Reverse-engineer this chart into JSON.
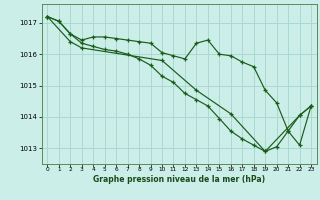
{
  "title": "Graphe pression niveau de la mer (hPa)",
  "bg_color": "#cceee8",
  "grid_color": "#aad8d0",
  "line_color": "#1a5c1a",
  "xlim": [
    -0.5,
    23.5
  ],
  "ylim": [
    1012.5,
    1017.6
  ],
  "yticks": [
    1013,
    1014,
    1015,
    1016,
    1017
  ],
  "xticks": [
    0,
    1,
    2,
    3,
    4,
    5,
    6,
    7,
    8,
    9,
    10,
    11,
    12,
    13,
    14,
    15,
    16,
    17,
    18,
    19,
    20,
    21,
    22,
    23
  ],
  "series": [
    {
      "x": [
        0,
        1,
        2,
        3,
        4,
        5,
        6,
        7,
        8,
        9,
        10,
        11,
        12,
        13,
        14,
        15,
        16,
        17,
        18,
        19,
        20,
        21,
        22,
        23
      ],
      "y": [
        1017.2,
        1017.05,
        1016.65,
        1016.45,
        1016.55,
        1016.55,
        1016.5,
        1016.45,
        1016.4,
        1016.35,
        1016.05,
        1015.95,
        1015.85,
        1016.35,
        1016.45,
        1016.0,
        1015.95,
        1015.75,
        1015.6,
        1014.85,
        1014.45,
        1013.55,
        1013.1,
        1014.35
      ]
    },
    {
      "x": [
        0,
        1,
        2,
        3,
        4,
        5,
        6,
        7,
        8,
        9,
        10,
        11,
        12,
        13,
        14,
        15,
        16,
        17,
        18,
        19,
        20,
        21,
        22,
        23
      ],
      "y": [
        1017.2,
        1017.05,
        1016.65,
        1016.35,
        1016.25,
        1016.15,
        1016.1,
        1016.0,
        1015.85,
        1015.65,
        1015.3,
        1015.1,
        1014.75,
        1014.55,
        1014.35,
        1013.95,
        1013.55,
        1013.3,
        1013.1,
        1012.9,
        1013.05,
        1013.55,
        1014.05,
        1014.35
      ]
    },
    {
      "x": [
        0,
        2,
        3,
        10,
        13,
        16,
        19,
        22,
        23
      ],
      "y": [
        1017.2,
        1016.4,
        1016.2,
        1015.8,
        1014.85,
        1014.1,
        1012.9,
        1014.05,
        1014.35
      ]
    }
  ]
}
